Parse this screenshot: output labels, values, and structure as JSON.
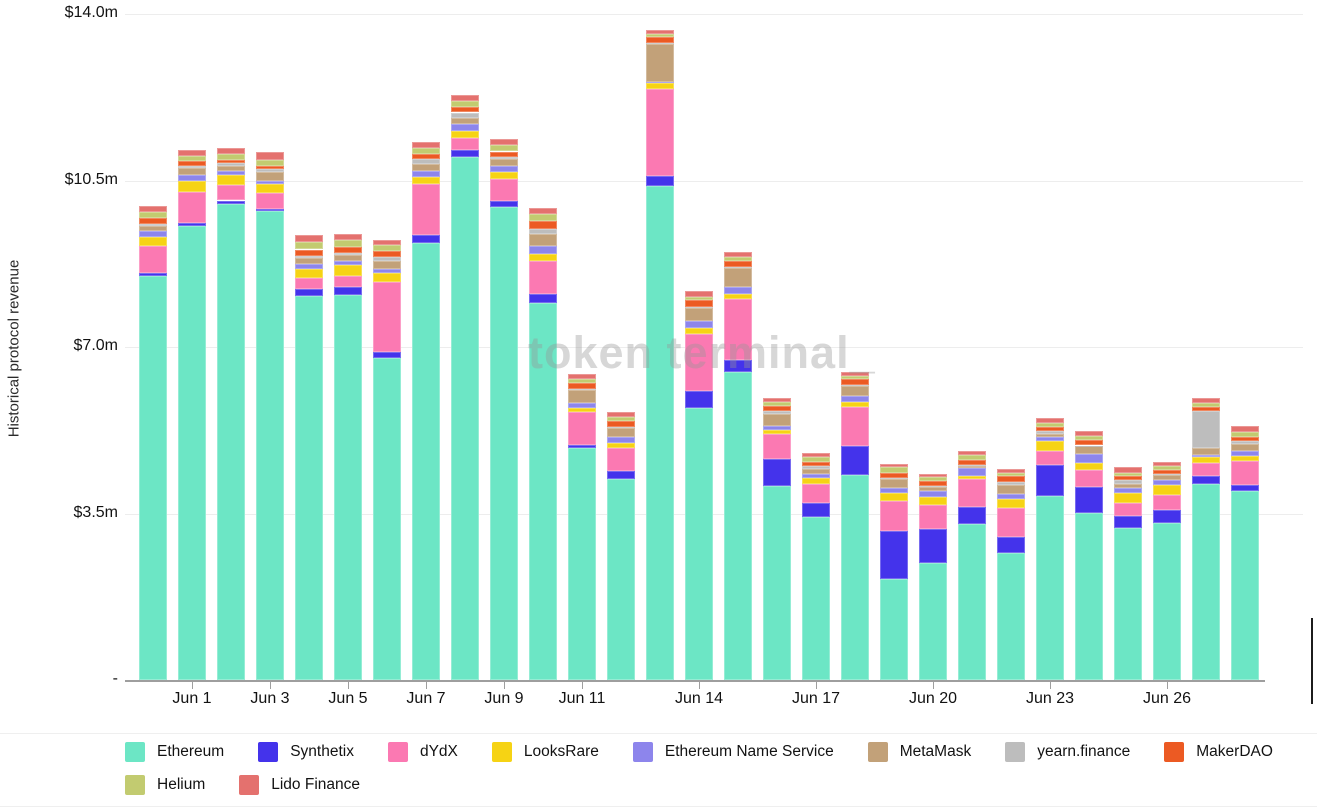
{
  "watermark": "token terminal_",
  "colors": {
    "background": "#ffffff",
    "gridline": "#ededed",
    "axis_line": "#9e9e9e",
    "axis_text": "#121212",
    "watermark_text": "#bfbfbf"
  },
  "chart_data": {
    "type": "bar",
    "stacked": true,
    "title": "",
    "xlabel": "",
    "ylabel": "Historical protocol revenue",
    "unit": "millions USD per day",
    "ylim": [
      0,
      14
    ],
    "grid": "horizontal",
    "legend_position": "bottom",
    "y_ticks": [
      {
        "label": "$14.0m",
        "value": 14
      },
      {
        "label": "$10.5m",
        "value": 10.5
      },
      {
        "label": "$7.0m",
        "value": 7
      },
      {
        "label": "$3.5m",
        "value": 3.5
      },
      {
        "label": "-",
        "value": 0
      }
    ],
    "x_ticks": [
      {
        "label": "Jun 1",
        "index": 1
      },
      {
        "label": "Jun 3",
        "index": 3
      },
      {
        "label": "Jun 5",
        "index": 5
      },
      {
        "label": "Jun 7",
        "index": 7
      },
      {
        "label": "Jun 9",
        "index": 9
      },
      {
        "label": "Jun 11",
        "index": 11
      },
      {
        "label": "Jun 14",
        "index": 14
      },
      {
        "label": "Jun 17",
        "index": 17
      },
      {
        "label": "Jun 20",
        "index": 20
      },
      {
        "label": "Jun 23",
        "index": 23
      },
      {
        "label": "Jun 26",
        "index": 26
      }
    ],
    "categories": [
      "May 31",
      "Jun 1",
      "Jun 2",
      "Jun 3",
      "Jun 4",
      "Jun 5",
      "Jun 6",
      "Jun 7",
      "Jun 8",
      "Jun 9",
      "Jun 10",
      "Jun 11",
      "Jun 12",
      "Jun 13",
      "Jun 14",
      "Jun 15",
      "Jun 16",
      "Jun 17",
      "Jun 18",
      "Jun 19",
      "Jun 20",
      "Jun 21",
      "Jun 22",
      "Jun 23",
      "Jun 24",
      "Jun 25",
      "Jun 26",
      "Jun 27",
      "Jun 28"
    ],
    "series": [
      {
        "name": "Ethereum",
        "color": "#6CE6C5",
        "values": [
          8.5,
          9.55,
          10.0,
          9.85,
          8.07,
          8.09,
          6.77,
          9.19,
          10.99,
          9.94,
          7.93,
          4.88,
          4.23,
          10.39,
          5.72,
          6.47,
          4.08,
          3.43,
          4.31,
          2.12,
          2.46,
          3.28,
          2.67,
          3.87,
          3.51,
          3.2,
          3.3,
          4.12,
          3.97
        ]
      },
      {
        "name": "Synthetix",
        "color": "#4433EB",
        "values": [
          0.05,
          0.05,
          0.08,
          0.06,
          0.15,
          0.17,
          0.13,
          0.17,
          0.15,
          0.13,
          0.19,
          0.06,
          0.17,
          0.21,
          0.36,
          0.25,
          0.57,
          0.29,
          0.61,
          1.01,
          0.71,
          0.36,
          0.34,
          0.65,
          0.55,
          0.25,
          0.27,
          0.17,
          0.13
        ]
      },
      {
        "name": "dYdX",
        "color": "#FB79B2",
        "values": [
          0.57,
          0.65,
          0.32,
          0.32,
          0.23,
          0.23,
          1.47,
          1.07,
          0.25,
          0.46,
          0.69,
          0.69,
          0.48,
          1.83,
          1.2,
          1.28,
          0.53,
          0.4,
          0.82,
          0.63,
          0.5,
          0.59,
          0.61,
          0.29,
          0.36,
          0.27,
          0.32,
          0.27,
          0.5
        ]
      },
      {
        "name": "LooksRare",
        "color": "#F6D314",
        "values": [
          0.19,
          0.25,
          0.21,
          0.19,
          0.19,
          0.23,
          0.19,
          0.15,
          0.15,
          0.15,
          0.15,
          0.08,
          0.11,
          0.13,
          0.11,
          0.11,
          0.08,
          0.13,
          0.11,
          0.17,
          0.17,
          0.06,
          0.19,
          0.21,
          0.15,
          0.21,
          0.21,
          0.13,
          0.11
        ]
      },
      {
        "name": "Ethereum Name Service",
        "color": "#8D85EC",
        "values": [
          0.13,
          0.11,
          0.08,
          0.08,
          0.11,
          0.08,
          0.08,
          0.13,
          0.15,
          0.13,
          0.17,
          0.11,
          0.11,
          0.02,
          0.15,
          0.15,
          0.08,
          0.08,
          0.13,
          0.11,
          0.13,
          0.17,
          0.11,
          0.08,
          0.19,
          0.11,
          0.11,
          0.04,
          0.11
        ]
      },
      {
        "name": "MetaMask",
        "color": "#C2A179",
        "values": [
          0.11,
          0.15,
          0.11,
          0.17,
          0.13,
          0.13,
          0.17,
          0.13,
          0.13,
          0.15,
          0.25,
          0.27,
          0.19,
          0.78,
          0.29,
          0.4,
          0.25,
          0.11,
          0.21,
          0.19,
          0.08,
          0.04,
          0.17,
          0.08,
          0.15,
          0.08,
          0.11,
          0.15,
          0.15
        ]
      },
      {
        "name": "yearn.finance",
        "color": "#BDBDBD",
        "values": [
          0.04,
          0.04,
          0.06,
          0.08,
          0.04,
          0.04,
          0.08,
          0.11,
          0.11,
          0.04,
          0.11,
          0.02,
          0.02,
          0.04,
          0.02,
          0.02,
          0.06,
          0.06,
          0.02,
          0.02,
          0.02,
          0.02,
          0.08,
          0.06,
          0.02,
          0.08,
          0.02,
          0.78,
          0.06
        ]
      },
      {
        "name": "MakerDAO",
        "color": "#EC5A23",
        "values": [
          0.13,
          0.11,
          0.08,
          0.06,
          0.13,
          0.13,
          0.13,
          0.11,
          0.11,
          0.11,
          0.15,
          0.13,
          0.13,
          0.11,
          0.13,
          0.13,
          0.11,
          0.08,
          0.11,
          0.11,
          0.11,
          0.11,
          0.11,
          0.08,
          0.11,
          0.08,
          0.08,
          0.08,
          0.08
        ]
      },
      {
        "name": "Helium",
        "color": "#C2CB70",
        "values": [
          0.11,
          0.11,
          0.11,
          0.13,
          0.15,
          0.15,
          0.13,
          0.13,
          0.13,
          0.13,
          0.15,
          0.08,
          0.08,
          0.08,
          0.08,
          0.08,
          0.08,
          0.11,
          0.08,
          0.11,
          0.08,
          0.11,
          0.08,
          0.08,
          0.08,
          0.08,
          0.08,
          0.08,
          0.11
        ]
      },
      {
        "name": "Lido Finance",
        "color": "#E4716E",
        "values": [
          0.13,
          0.13,
          0.13,
          0.15,
          0.15,
          0.13,
          0.11,
          0.13,
          0.13,
          0.13,
          0.13,
          0.11,
          0.11,
          0.08,
          0.11,
          0.11,
          0.08,
          0.08,
          0.08,
          0.08,
          0.08,
          0.08,
          0.08,
          0.11,
          0.11,
          0.11,
          0.08,
          0.11,
          0.11
        ]
      }
    ]
  }
}
